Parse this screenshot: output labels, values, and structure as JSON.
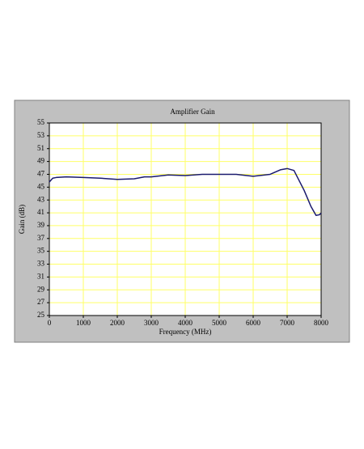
{
  "chart_data": {
    "type": "line",
    "title": "Amplifier Gain",
    "x_label": "Frequency (MHz)",
    "y_label": "Gain (dB)",
    "x": [
      0,
      100,
      200,
      500,
      1000,
      1500,
      2000,
      2500,
      2800,
      3000,
      3500,
      4000,
      4500,
      5000,
      5500,
      6000,
      6500,
      6800,
      7000,
      7200,
      7500,
      7700,
      7850,
      7950,
      8000
    ],
    "values": [
      45.8,
      46.4,
      46.5,
      46.6,
      46.5,
      46.4,
      46.2,
      46.3,
      46.6,
      46.6,
      46.9,
      46.8,
      47.0,
      47.0,
      47.0,
      46.7,
      47.0,
      47.7,
      47.9,
      47.6,
      44.5,
      42.0,
      40.6,
      40.7,
      41.0
    ],
    "color": "#1a1a6e",
    "xlim": [
      0,
      8000
    ],
    "xticks": [
      0,
      1000,
      2000,
      3000,
      4000,
      5000,
      6000,
      7000,
      8000
    ],
    "ylim": [
      25,
      55
    ],
    "yticks": [
      25,
      27,
      29,
      31,
      33,
      35,
      37,
      39,
      41,
      43,
      45,
      47,
      49,
      51,
      53,
      55
    ],
    "grid": true,
    "grid_color": "#ffff66"
  }
}
